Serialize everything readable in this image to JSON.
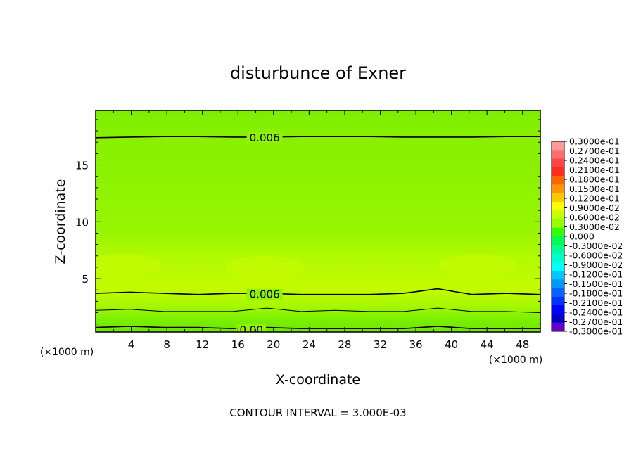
{
  "chart_data": {
    "type": "heatmap",
    "title": "disturbunce of Exner",
    "xlabel": "X-coordinate",
    "ylabel": "Z-coordinate",
    "x_unit": "(×1000 m)",
    "y_unit": "(×1000 m)",
    "xlim": [
      0,
      50
    ],
    "ylim": [
      0.3,
      19.8
    ],
    "x_ticks": [
      "4",
      "8",
      "12",
      "16",
      "20",
      "24",
      "28",
      "32",
      "36",
      "40",
      "44",
      "48"
    ],
    "y_ticks": [
      "5",
      "10",
      "15"
    ],
    "contour_interval_text": "CONTOUR INTERVAL = 3.000E-03",
    "contour_labels": [
      {
        "text": "0.006",
        "x": 19,
        "z": 17.4
      },
      {
        "text": "0.006",
        "x": 19,
        "z": 3.6
      },
      {
        "text": "0.00",
        "x": 17.5,
        "z": 0.5
      }
    ],
    "contours": [
      {
        "level": 0.006,
        "z": [
          17.4,
          17.45,
          17.5,
          17.5,
          17.45,
          17.45,
          17.5,
          17.5,
          17.5,
          17.45,
          17.45,
          17.45,
          17.5,
          17.5
        ]
      },
      {
        "level": 0.006,
        "z": [
          3.7,
          3.8,
          3.7,
          3.6,
          3.7,
          3.7,
          3.6,
          3.6,
          3.6,
          3.7,
          4.1,
          3.6,
          3.7,
          3.6
        ]
      },
      {
        "level": 0.003,
        "z": [
          2.2,
          2.3,
          2.1,
          2.1,
          2.1,
          2.4,
          2.1,
          2.2,
          2.1,
          2.1,
          2.4,
          2.1,
          2.1,
          2.0
        ]
      },
      {
        "level": 0.0,
        "z": [
          0.7,
          0.8,
          0.7,
          0.7,
          0.6,
          0.7,
          0.6,
          0.6,
          0.6,
          0.6,
          0.8,
          0.6,
          0.6,
          0.6
        ]
      }
    ],
    "colorbar": {
      "labels": [
        "0.3000e-01",
        "0.2700e-01",
        "0.2400e-01",
        "0.2100e-01",
        "0.1800e-01",
        "0.1500e-01",
        "0.1200e-01",
        "0.9000e-02",
        "0.6000e-02",
        "0.3000e-02",
        "0.000",
        "-0.3000e-02",
        "-0.6000e-02",
        "-0.9000e-02",
        "-0.1200e-01",
        "-0.1500e-01",
        "-0.1800e-01",
        "-0.2100e-01",
        "-0.2400e-01",
        "-0.2700e-01",
        "-0.3000e-01"
      ],
      "colors": [
        "#ff9999",
        "#ff6e6e",
        "#ff4646",
        "#ff2d19",
        "#ff6400",
        "#ff9600",
        "#ffc800",
        "#ffff00",
        "#c8ff00",
        "#96ff00",
        "#32ff00",
        "#00ff50",
        "#00ff96",
        "#00ffc8",
        "#00ffff",
        "#00c8ff",
        "#0096ff",
        "#0064ff",
        "#0032ff",
        "#0000ff",
        "#0000c8",
        "#6400c8"
      ]
    }
  }
}
